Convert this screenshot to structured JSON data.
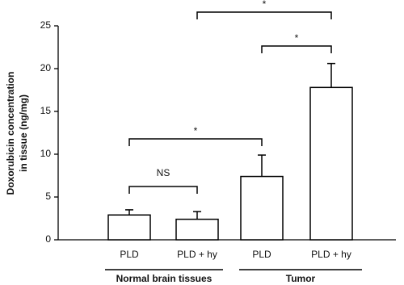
{
  "chart_data": {
    "type": "bar",
    "ylabel": [
      "Doxorubicin concentration",
      "in tissue (ng/mg)"
    ],
    "categories": [
      "PLD",
      "PLD + hy",
      "PLD",
      "PLD + hy"
    ],
    "values": [
      2.9,
      2.4,
      7.4,
      17.8
    ],
    "errors": [
      0.6,
      0.9,
      2.5,
      2.8
    ],
    "color": "#ffffff",
    "ylim": [
      0,
      25
    ],
    "yticks": [
      0,
      5,
      10,
      15,
      20,
      25
    ],
    "groups": [
      "Normal brain tissues",
      "Tumor"
    ],
    "annotations": [
      "NS",
      "*",
      "*",
      "*"
    ]
  }
}
